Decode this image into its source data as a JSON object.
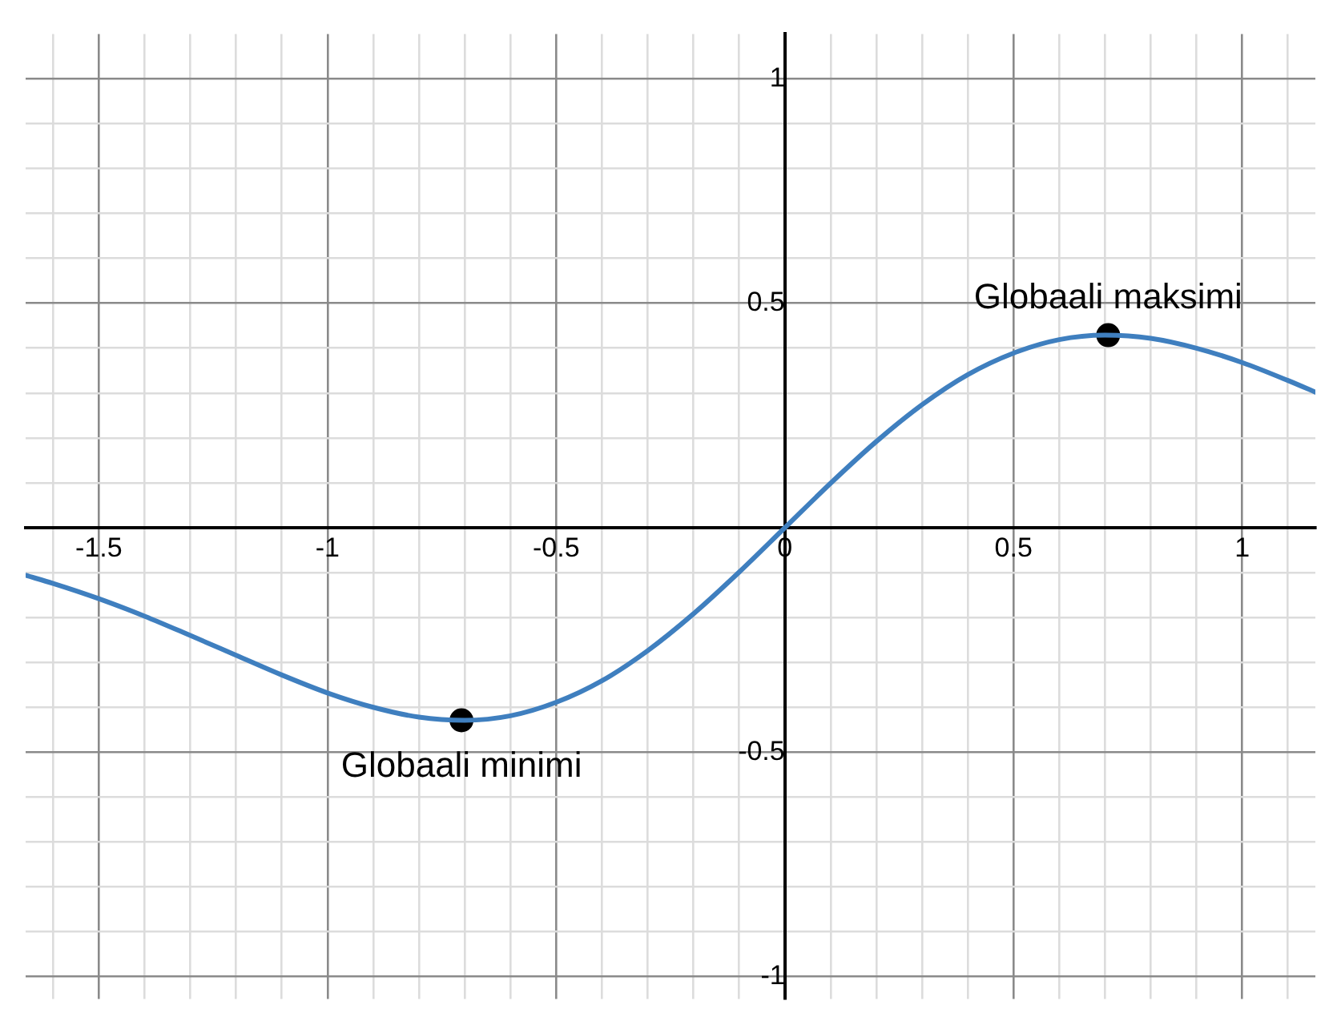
{
  "chart_data": {
    "type": "line",
    "xlim": [
      -1.66,
      1.16
    ],
    "ylim": [
      -1.05,
      1.1
    ],
    "xticks": [
      {
        "value": -1.6,
        "label": null
      },
      {
        "value": -1.5,
        "label": "-1.5"
      },
      {
        "value": -1.4,
        "label": null
      },
      {
        "value": -1.3,
        "label": null
      },
      {
        "value": -1.2,
        "label": null
      },
      {
        "value": -1.1,
        "label": null
      },
      {
        "value": -1,
        "label": "-1"
      },
      {
        "value": -0.9,
        "label": null
      },
      {
        "value": -0.8,
        "label": null
      },
      {
        "value": -0.7,
        "label": null
      },
      {
        "value": -0.6,
        "label": null
      },
      {
        "value": -0.5,
        "label": "-0.5"
      },
      {
        "value": -0.4,
        "label": null
      },
      {
        "value": -0.3,
        "label": null
      },
      {
        "value": -0.2,
        "label": null
      },
      {
        "value": -0.1,
        "label": null
      },
      {
        "value": 0,
        "label": "0"
      },
      {
        "value": 0.1,
        "label": null
      },
      {
        "value": 0.2,
        "label": null
      },
      {
        "value": 0.3,
        "label": null
      },
      {
        "value": 0.4,
        "label": null
      },
      {
        "value": 0.5,
        "label": "0.5"
      },
      {
        "value": 0.6,
        "label": null
      },
      {
        "value": 0.7,
        "label": null
      },
      {
        "value": 0.8,
        "label": null
      },
      {
        "value": 0.9,
        "label": null
      },
      {
        "value": 1,
        "label": "1"
      },
      {
        "value": 1.1,
        "label": null
      }
    ],
    "yticks": [
      {
        "value": -1,
        "label": "-1"
      },
      {
        "value": -0.9,
        "label": null
      },
      {
        "value": -0.8,
        "label": null
      },
      {
        "value": -0.7,
        "label": null
      },
      {
        "value": -0.6,
        "label": null
      },
      {
        "value": -0.5,
        "label": "-0.5"
      },
      {
        "value": -0.4,
        "label": null
      },
      {
        "value": -0.3,
        "label": null
      },
      {
        "value": -0.2,
        "label": null
      },
      {
        "value": -0.1,
        "label": null
      },
      {
        "value": 0,
        "label": null
      },
      {
        "value": 0.1,
        "label": null
      },
      {
        "value": 0.2,
        "label": null
      },
      {
        "value": 0.3,
        "label": null
      },
      {
        "value": 0.4,
        "label": null
      },
      {
        "value": 0.5,
        "label": "0.5"
      },
      {
        "value": 0.6,
        "label": null
      },
      {
        "value": 0.7,
        "label": null
      },
      {
        "value": 0.8,
        "label": null
      },
      {
        "value": 0.9,
        "label": null
      },
      {
        "value": 1,
        "label": "1"
      }
    ],
    "grid": true,
    "series": [
      {
        "type": "line",
        "color": "#3f7fbf",
        "marker": "none",
        "x": [
          -1.66,
          -1.6,
          -1.5,
          -1.4,
          -1.3,
          -1.2,
          -1.1,
          -1,
          -0.9,
          -0.8,
          -0.7,
          -0.6,
          -0.5,
          -0.4,
          -0.3,
          -0.2,
          -0.1,
          0,
          0.1,
          0.2,
          0.3,
          0.4,
          0.5,
          0.6,
          0.7,
          0.8,
          0.9,
          1,
          1.1,
          1.16
        ],
        "values": [
          -0.106,
          -0.124,
          -0.158,
          -0.197,
          -0.24,
          -0.284,
          -0.328,
          -0.368,
          -0.4,
          -0.422,
          -0.429,
          -0.419,
          -0.389,
          -0.341,
          -0.274,
          -0.192,
          -0.099,
          0,
          0.099,
          0.192,
          0.274,
          0.341,
          0.389,
          0.419,
          0.429,
          0.422,
          0.4,
          0.368,
          0.328,
          0.302
        ]
      },
      {
        "type": "scatter",
        "color": "#000000",
        "marker": "circle",
        "x": [
          -0.707,
          0.707
        ],
        "values": [
          -0.429,
          0.429
        ]
      }
    ],
    "annotations": [
      {
        "text": "Globaali maksimi",
        "x": 0.707,
        "y": 0.429
      },
      {
        "text": "Globaali minimi",
        "x": -0.707,
        "y": -0.429
      }
    ]
  }
}
